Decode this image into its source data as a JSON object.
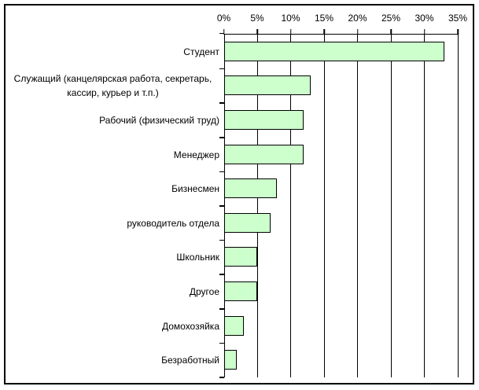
{
  "chart_data": {
    "type": "bar",
    "orientation": "horizontal",
    "title": "",
    "categories": [
      "Студент",
      "Служащий (канцелярская работа, секретарь, кассир, курьер и т.п.)",
      "Рабочий (физический труд)",
      "Менеджер",
      "Бизнесмен",
      "руководитель отдела",
      "Школьник",
      "Другое",
      "Домохозяйка",
      "Безработный"
    ],
    "values": [
      33,
      13,
      12,
      12,
      8,
      7,
      5,
      5,
      3,
      2
    ],
    "unit": "%",
    "value_axis": {
      "position": "top",
      "xlim": [
        0,
        35
      ],
      "tick_values": [
        0,
        5,
        10,
        15,
        20,
        25,
        30,
        35
      ],
      "tick_labels": [
        "0%",
        "5%",
        "10%",
        "15%",
        "20%",
        "25%",
        "30%",
        "35%"
      ]
    },
    "grid": true,
    "legend": false,
    "colors": {
      "bar_fill": "#ccffcc",
      "bar_border": "#000000",
      "axis_line": "#000000",
      "text": "#000000",
      "background": "#ffffff"
    }
  }
}
